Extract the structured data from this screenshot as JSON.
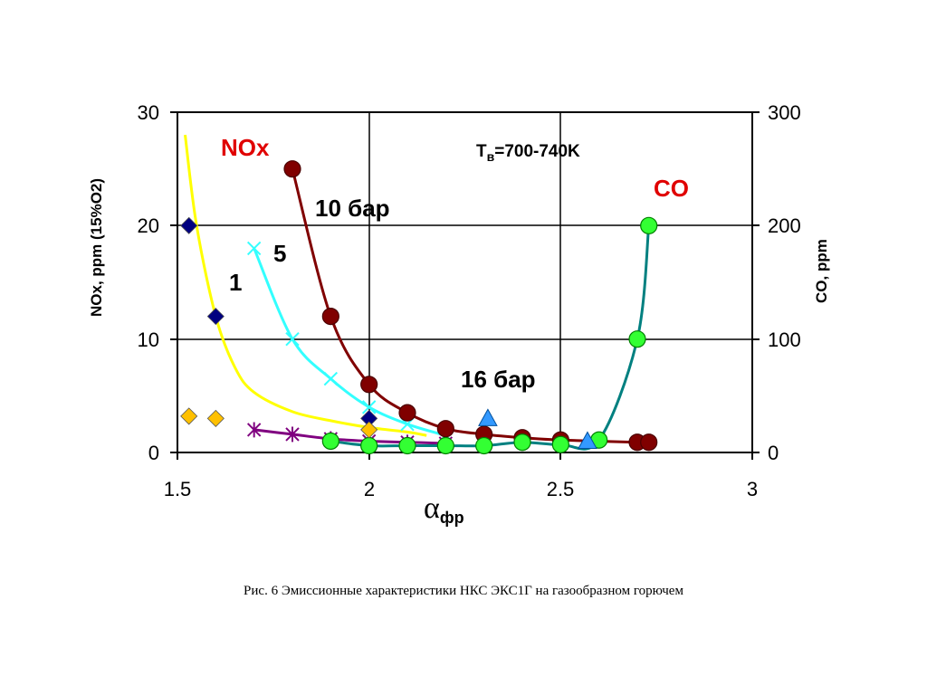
{
  "chart_data": {
    "type": "line",
    "xlabel_main": "α",
    "xlabel_sub": "фр",
    "ylabel_left": "NOx, ppm (15%O2)",
    "ylabel_right": "CO, ppm",
    "xlim": [
      1.5,
      3
    ],
    "ylim_left": [
      0,
      30
    ],
    "ylim_right": [
      0,
      300
    ],
    "x_ticks": [
      "1.5",
      "2",
      "2.5",
      "3"
    ],
    "y_ticks_left": [
      "0",
      "10",
      "20",
      "30"
    ],
    "y_ticks_right": [
      "0",
      "100",
      "200",
      "300"
    ],
    "grid": true,
    "annotations": {
      "nox": "NOx",
      "co": "CO",
      "temperature_main": "T",
      "temperature_sub": "в",
      "temperature_value": "=700-740K",
      "p10": "10 бар",
      "p5": "5",
      "p1": "1",
      "p16": "16 бар"
    },
    "series": [
      {
        "key": "nox_1bar_line",
        "axis": "left",
        "color": "#ffff00",
        "x": [
          1.52,
          1.55,
          1.6,
          1.65,
          1.7,
          1.8,
          1.9,
          2.0,
          2.1,
          2.15
        ],
        "y": [
          28,
          20,
          12,
          7.5,
          5.3,
          3.6,
          2.8,
          2.2,
          1.8,
          1.5
        ]
      },
      {
        "key": "nox_1bar_points",
        "axis": "left",
        "color": "#ffc000",
        "x": [
          1.53,
          1.6,
          2.0
        ],
        "y": [
          3.2,
          3.0,
          2.0
        ]
      },
      {
        "key": "nox_10bar",
        "axis": "left",
        "color": "#800000",
        "x": [
          1.8,
          1.9,
          2.0,
          2.1,
          2.2,
          2.3,
          2.4,
          2.5,
          2.7,
          2.73
        ],
        "y": [
          25,
          12,
          6,
          3.5,
          2.1,
          1.6,
          1.3,
          1.1,
          0.9,
          0.9
        ]
      },
      {
        "key": "nox_5bar",
        "axis": "left",
        "color": "#33ffff",
        "x": [
          1.7,
          1.8,
          1.9,
          2.0,
          2.1,
          2.2
        ],
        "y": [
          18,
          10,
          6.5,
          4,
          2.5,
          1.5
        ]
      },
      {
        "key": "nox_diamonds_blue",
        "axis": "left",
        "color": "#000080",
        "x": [
          1.53,
          1.6,
          2.0
        ],
        "y": [
          20,
          12,
          3
        ]
      },
      {
        "key": "nox_16bar",
        "axis": "left",
        "color": "#800080",
        "x": [
          1.7,
          1.8,
          1.9,
          2.0,
          2.1,
          2.2
        ],
        "y": [
          2.0,
          1.6,
          1.2,
          1.0,
          0.9,
          0.8
        ]
      },
      {
        "key": "nox_16bar_triangles",
        "axis": "left",
        "color": "#3399ff",
        "x": [
          2.31,
          2.57
        ],
        "y": [
          3.0,
          1.0
        ]
      },
      {
        "key": "co",
        "axis": "right",
        "color": "#008080",
        "x": [
          1.9,
          2.0,
          2.1,
          2.2,
          2.3,
          2.4,
          2.5,
          2.6,
          2.7,
          2.73
        ],
        "y": [
          10,
          6,
          6,
          6,
          6,
          9,
          7,
          11,
          100,
          200
        ]
      }
    ],
    "caption": "Рис. 6  Эмиссионные характеристики НКС ЭКС1Г на газообразном горючем"
  }
}
